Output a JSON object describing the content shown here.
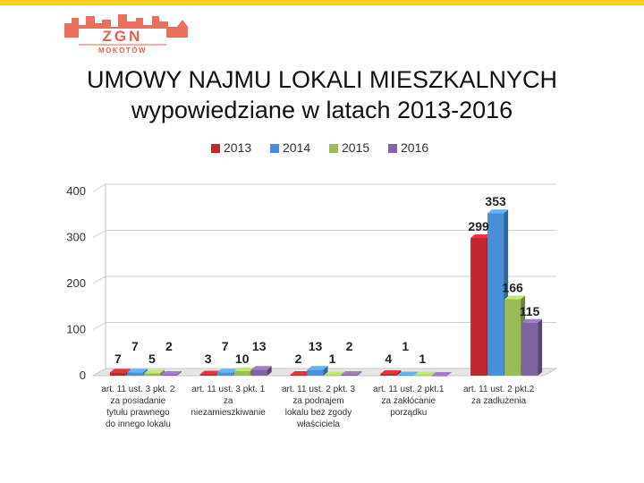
{
  "header": {
    "logo_text": "ZGN",
    "logo_subtext": "MOKOTÓW"
  },
  "title": {
    "line1": "UMOWY NAJMU LOKALI MIESZKALNYCH",
    "line2": "wypowiedziane w latach 2013-2016"
  },
  "colors": {
    "accent_bar": "#f7d21c",
    "logo": "#e8604c"
  },
  "chart_data": {
    "type": "bar",
    "legend_position": "top",
    "grid": true,
    "ylim": [
      0,
      400
    ],
    "yticks": [
      "0",
      "100",
      "200",
      "300",
      "400"
    ],
    "categories": [
      [
        "art. 11 ust. 3 pkt. 2",
        "za posiadanie",
        "tytułu prawnego",
        "do innego lokalu"
      ],
      [
        "art. 11 ust. 3 pkt. 1",
        "za",
        "niezamieszkiwanie"
      ],
      [
        "art. 11 ust. 2 pkt. 3",
        "za podnajem",
        "lokalu bez zgody",
        "właściciela"
      ],
      [
        "art. 11 ust. 2 pkt.1",
        "za zakłócanie",
        "porządku"
      ],
      [
        "art. 11 ust. 2 pkt.2",
        "za zadłużenia"
      ]
    ],
    "series": [
      {
        "name": "2013",
        "color": "#c0272d",
        "values": [
          7,
          3,
          2,
          4,
          299
        ]
      },
      {
        "name": "2014",
        "color": "#4a90d9",
        "values": [
          7,
          7,
          13,
          1,
          353
        ]
      },
      {
        "name": "2015",
        "color": "#9bbb59",
        "values": [
          5,
          10,
          1,
          1,
          166
        ]
      },
      {
        "name": "2016",
        "color": "#8064a2",
        "values": [
          2,
          13,
          2,
          0,
          115
        ]
      }
    ],
    "data_labels": [
      [
        "7",
        "7",
        "5",
        "2"
      ],
      [
        "3",
        "7",
        "10",
        "13"
      ],
      [
        "2",
        "13",
        "1",
        "2"
      ],
      [
        "4",
        "1",
        "1",
        ""
      ],
      [
        "299",
        "353",
        "166",
        "115"
      ]
    ]
  }
}
